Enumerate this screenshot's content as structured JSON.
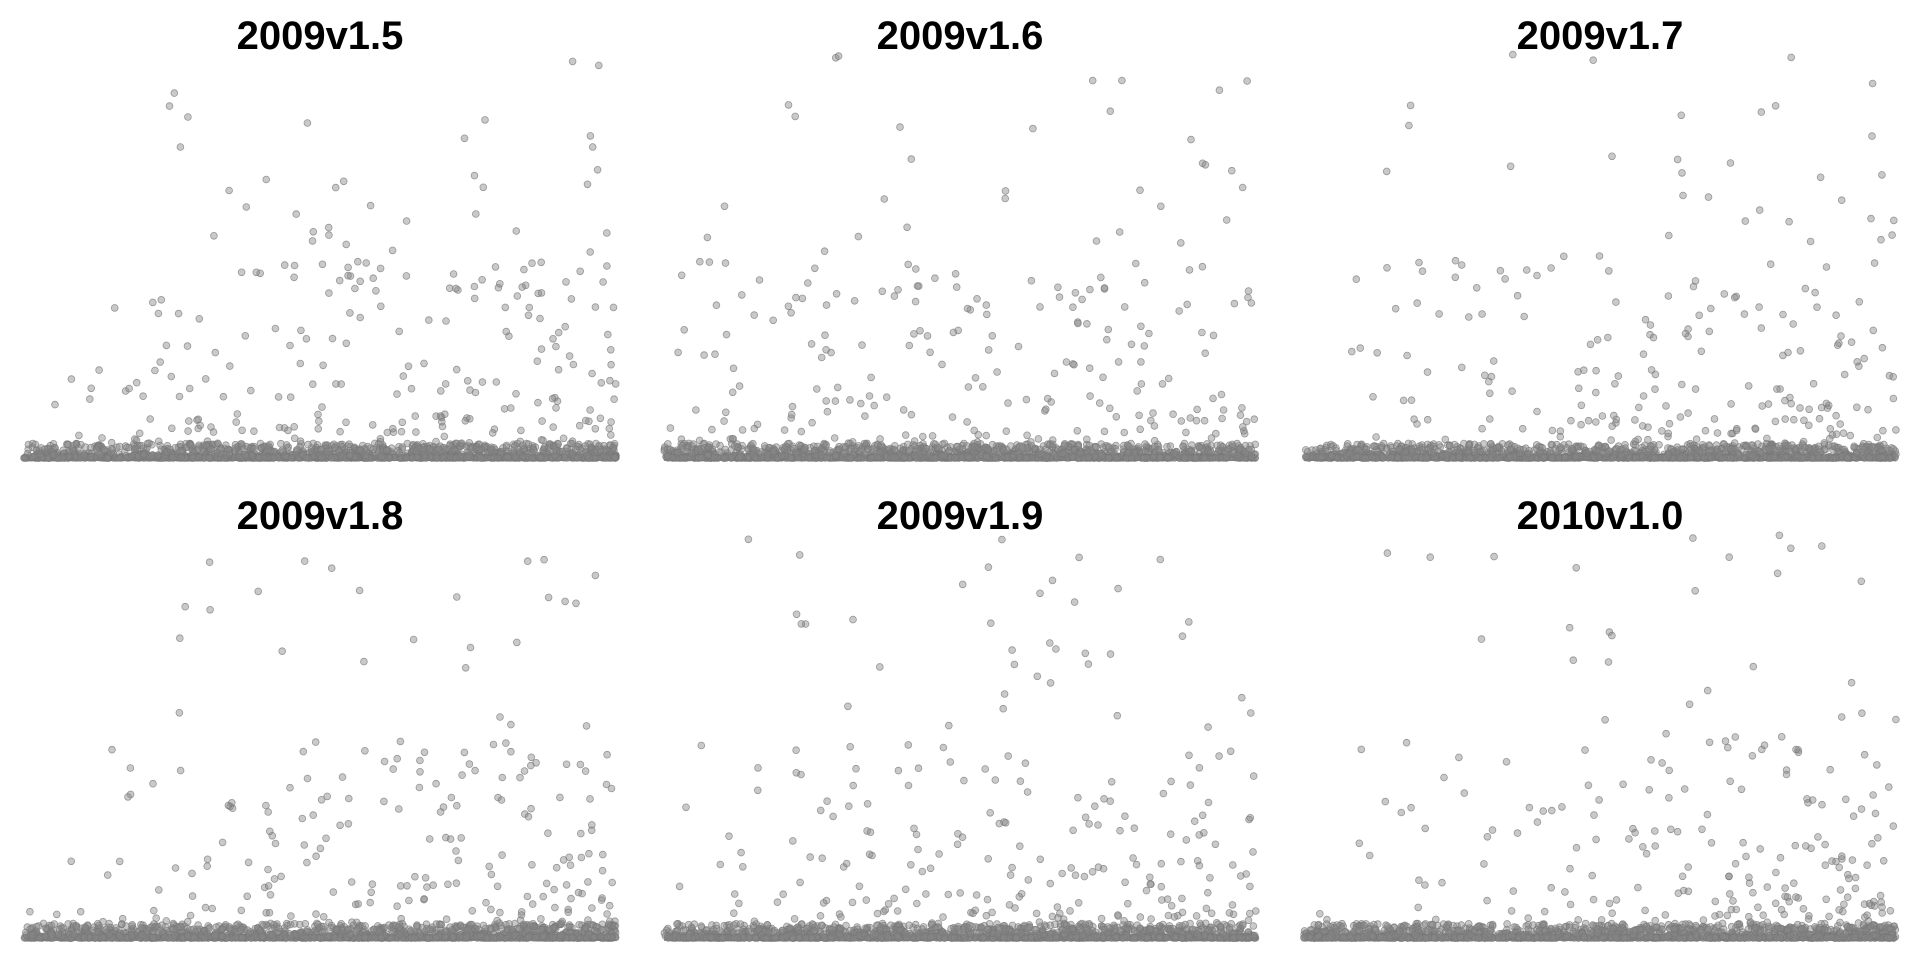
{
  "chart_data": [
    {
      "type": "scatter",
      "title": "2009v1.5",
      "generator": {
        "n_base": 1400,
        "n_mid": 260,
        "n_high": 42,
        "high_bias": 1.6,
        "seed": 11
      }
    },
    {
      "type": "scatter",
      "title": "2009v1.6",
      "generator": {
        "n_base": 1400,
        "n_mid": 250,
        "n_high": 40,
        "high_bias": 1.2,
        "seed": 23
      }
    },
    {
      "type": "scatter",
      "title": "2009v1.7",
      "generator": {
        "n_base": 1400,
        "n_mid": 240,
        "n_high": 38,
        "high_bias": 1.8,
        "seed": 37
      }
    },
    {
      "type": "scatter",
      "title": "2009v1.8",
      "generator": {
        "n_base": 1400,
        "n_mid": 230,
        "n_high": 34,
        "high_bias": 1.9,
        "seed": 41
      }
    },
    {
      "type": "scatter",
      "title": "2009v1.9",
      "generator": {
        "n_base": 1400,
        "n_mid": 250,
        "n_high": 40,
        "high_bias": 1.5,
        "seed": 53
      }
    },
    {
      "type": "scatter",
      "title": "2010v1.0",
      "generator": {
        "n_base": 1400,
        "n_mid": 230,
        "n_high": 36,
        "high_bias": 1.9,
        "seed": 67
      }
    }
  ],
  "style": {
    "point_fill": "#888888",
    "point_stroke": "#777777",
    "point_opacity": 0.45,
    "baseline_color": "#8a8a8a"
  }
}
